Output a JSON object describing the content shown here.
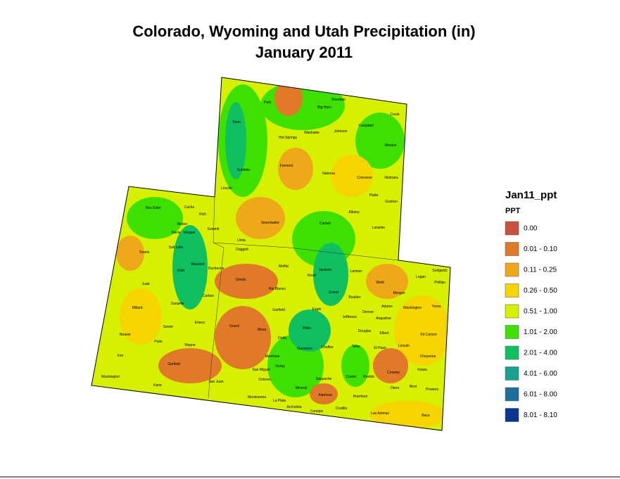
{
  "title": [
    "Colorado, Wyoming and Utah Precipitation (in)",
    "January 2011"
  ],
  "legend": {
    "title": "Jan11_ppt",
    "subtitle": "PPT",
    "items": [
      {
        "label": "0.00",
        "color": "#c8503c"
      },
      {
        "label": "0.01 - 0.10",
        "color": "#e07a28"
      },
      {
        "label": "0.11 - 0.25",
        "color": "#eea81a"
      },
      {
        "label": "0.26 - 0.50",
        "color": "#f5d400"
      },
      {
        "label": "0.51 - 1.00",
        "color": "#d6f000"
      },
      {
        "label": "1.01 - 2.00",
        "color": "#3ee000"
      },
      {
        "label": "2.01 - 4.00",
        "color": "#10c060"
      },
      {
        "label": "4.01 - 6.00",
        "color": "#1aa090"
      },
      {
        "label": "6.01 - 8.00",
        "color": "#1a6ea0"
      },
      {
        "label": "8.01 - 8.10",
        "color": "#0a3590"
      }
    ]
  },
  "counties": [
    "Park",
    "Big Horn",
    "Sheridan",
    "Crook",
    "Teton",
    "Washakie",
    "Johnson",
    "Campbell",
    "Hot Springs",
    "Weston",
    "Fremont",
    "Natrona",
    "Converse",
    "Niobrara",
    "Sublette",
    "Lincoln",
    "Platte",
    "Goshen",
    "Sweetwater",
    "Carbon",
    "Albany",
    "Laramie",
    "Uinta",
    "Box Elder",
    "Cache",
    "Rich",
    "Weber",
    "Morgan",
    "Davis",
    "Summit",
    "Salt Lake",
    "Daggett",
    "Tooele",
    "Wasatch",
    "Duchesne",
    "Uintah",
    "Moffat",
    "Routt",
    "Jackson",
    "Larimer",
    "Sedgwick",
    "Logan",
    "Phillips",
    "Juab",
    "Utah",
    "Rio Blanco",
    "Grand",
    "Boulder",
    "Weld",
    "Morgan",
    "Millard",
    "Sanpete",
    "Garfield",
    "Eagle",
    "Adams",
    "Washington",
    "Yuma",
    "Sevier",
    "Emery",
    "Mesa",
    "Pitkin",
    "Douglas",
    "Elbert",
    "Kit Carson",
    "Beaver",
    "Piute",
    "Wayne",
    "Delta",
    "Gunnison",
    "Chaffee",
    "Teller",
    "El Paso",
    "Lincoln",
    "Cheyenne",
    "Iron",
    "Montrose",
    "Pueblo",
    "Crowley",
    "Kiowa",
    "Kane",
    "San Juan",
    "San Miguel",
    "Ouray",
    "Saguache",
    "Custer",
    "Otero",
    "Bent",
    "Prowers",
    "Dolores",
    "Mineral",
    "Alamosa",
    "Huerfano",
    "Montezuma",
    "La Plata",
    "Archuleta",
    "Conejos",
    "Costilla",
    "Las Animas",
    "Baca",
    "Washington",
    "Grand",
    "Carbon",
    "Garfield",
    "Jefferson",
    "Arapahoe",
    "Denver"
  ]
}
